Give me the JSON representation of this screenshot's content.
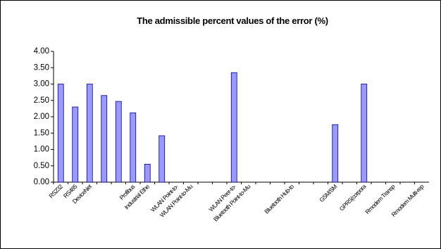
{
  "chart_data": {
    "type": "bar",
    "title": "The admissible percent values of the error (%)",
    "categories": [
      "RS232",
      "RS485",
      "DeviceNet",
      null,
      null,
      "Profibus",
      "Industrial Ethe",
      null,
      "WLAN Point-to-",
      "WLAN Point-to-Mu",
      null,
      null,
      "WLAN Peer-to-",
      "Bluetooth Point-to-Mu",
      null,
      null,
      "Bluetooth Hub-to",
      null,
      null,
      "GSM/SM",
      null,
      "GPRS(corpora",
      null,
      "Rmodem Transp",
      null,
      "Rmodem Multi-rep"
    ],
    "values": [
      3.0,
      2.3,
      3.0,
      2.65,
      2.47,
      2.12,
      0.55,
      1.42,
      null,
      null,
      null,
      null,
      3.35,
      null,
      null,
      null,
      null,
      null,
      null,
      1.76,
      null,
      3.0,
      null,
      null,
      null,
      null
    ],
    "color": "#9999ff",
    "ylim": [
      0,
      4
    ],
    "yticks": [
      {
        "value": 0,
        "label": "0.00"
      },
      {
        "value": 0.5,
        "label": "0.50"
      },
      {
        "value": 1,
        "label": "1.00"
      },
      {
        "value": 1.5,
        "label": "1.50"
      },
      {
        "value": 2,
        "label": "2.00"
      },
      {
        "value": 2.5,
        "label": "2.50"
      },
      {
        "value": 3,
        "label": "3.00"
      },
      {
        "value": 3.5,
        "label": "3.50"
      },
      {
        "value": 4,
        "label": "4.00"
      }
    ],
    "grid": false
  }
}
